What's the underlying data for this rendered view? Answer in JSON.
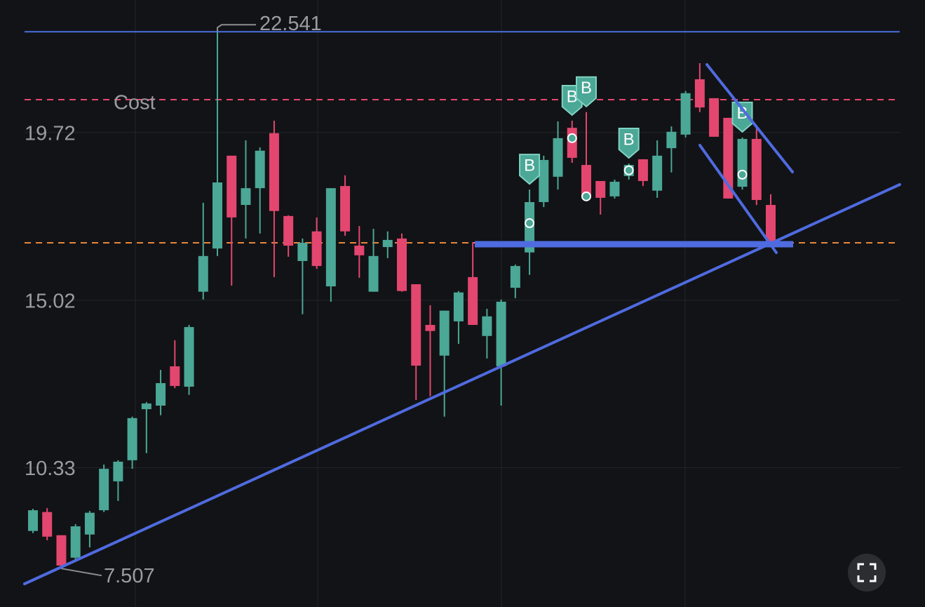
{
  "chart_data": {
    "type": "candlestick",
    "categories": [
      null,
      null,
      null,
      null,
      null,
      null,
      null,
      null,
      null,
      null,
      null,
      null,
      null,
      null,
      null,
      null,
      null,
      null,
      null,
      null,
      null,
      null,
      null,
      null,
      null,
      null,
      null,
      null,
      null,
      null,
      null,
      null,
      null,
      null,
      null,
      null,
      null,
      null,
      null,
      null,
      null,
      null,
      null,
      null,
      null,
      null,
      null,
      null,
      null,
      null,
      null,
      null,
      null
    ],
    "open": [
      8.56,
      9.09,
      8.44,
      7.81,
      8.46,
      9.14,
      9.95,
      10.54,
      11.97,
      12.07,
      13.17,
      12.6,
      15.26,
      16.47,
      19.07,
      17.69,
      18.16,
      19.7,
      17.38,
      16.12,
      16.95,
      15.41,
      18.22,
      16.55,
      15.26,
      16.51,
      16.75,
      15.47,
      14.33,
      13.47,
      14.43,
      15.67,
      14.02,
      13.17,
      15.37,
      16.36,
      17.77,
      18.48,
      19.85,
      18.81,
      18.36,
      17.93,
      18.5,
      18.97,
      18.09,
      19.28,
      19.66,
      21.21,
      20.68,
      20.13,
      18.2,
      19.54,
      17.69
    ],
    "high": [
      9.18,
      9.2,
      8.44,
      8.75,
      9.12,
      10.42,
      10.54,
      11.76,
      12.17,
      13.07,
      13.9,
      14.33,
      17.75,
      22.541,
      19.07,
      19.5,
      19.3,
      20.05,
      17.4,
      16.75,
      17.34,
      18.16,
      18.52,
      17.1,
      17.02,
      16.95,
      16.89,
      15.47,
      14.88,
      14.73,
      15.28,
      16.65,
      14.78,
      15.04,
      16.02,
      18.12,
      19.07,
      20.03,
      20.05,
      20.29,
      18.36,
      18.4,
      18.85,
      18.97,
      19.5,
      19.89,
      20.88,
      21.66,
      20.68,
      20.13,
      19.58,
      19.89,
      17.99
    ],
    "low": [
      8.5,
      8.3,
      7.507,
      7.77,
      8.1,
      9.09,
      9.4,
      10.3,
      10.74,
      11.8,
      12.56,
      12.37,
      15.04,
      16.26,
      15.43,
      16.75,
      16.89,
      15.67,
      16.24,
      14.63,
      15.9,
      14.98,
      16.83,
      15.65,
      15.26,
      16.2,
      15.26,
      12.23,
      12.33,
      11.76,
      13.8,
      14.33,
      13.39,
      12.07,
      15.08,
      15.73,
      17.63,
      18.12,
      18.87,
      17.93,
      17.42,
      17.87,
      18.4,
      18.22,
      17.89,
      18.6,
      19.58,
      20.29,
      19.6,
      17.87,
      18.12,
      17.69,
      16.55
    ],
    "close": [
      9.14,
      8.4,
      7.59,
      8.69,
      9.07,
      10.3,
      10.5,
      11.72,
      12.13,
      12.7,
      12.62,
      14.27,
      16.26,
      18.32,
      17.34,
      18.16,
      19.21,
      17.52,
      16.55,
      16.63,
      15.98,
      18.16,
      16.95,
      16.28,
      16.26,
      16.71,
      15.28,
      13.19,
      14.16,
      14.73,
      15.24,
      14.33,
      14.57,
      14.98,
      15.98,
      17.77,
      18.95,
      19.56,
      19.01,
      17.93,
      17.89,
      18.34,
      18.81,
      18.36,
      19.07,
      19.74,
      20.82,
      20.42,
      19.6,
      17.87,
      19.54,
      17.83,
      16.65
    ],
    "up_color": "#4ba796",
    "down_color": "#e3466f",
    "ylim": [
      6.43,
      23.43
    ],
    "yticks": [
      10.33,
      15.02,
      19.72
    ],
    "grid": true,
    "max_price": 22.541,
    "min_price": 7.507,
    "cost_line": {
      "label": "Cost",
      "value": 20.64,
      "color": "#e3466f"
    },
    "price_line": {
      "value": 16.63,
      "color": "#e8873a"
    },
    "buy_markers": [
      {
        "category_index": 35,
        "price": 17.18,
        "label": "B"
      },
      {
        "category_index": 38,
        "price": 19.56,
        "label": "B"
      },
      {
        "category_index": 39,
        "price": 17.93,
        "label": "B"
      },
      {
        "category_index": 42,
        "price": 18.66,
        "label": "B"
      },
      {
        "category_index": 50,
        "price": 18.54,
        "label": "B"
      }
    ]
  }
}
